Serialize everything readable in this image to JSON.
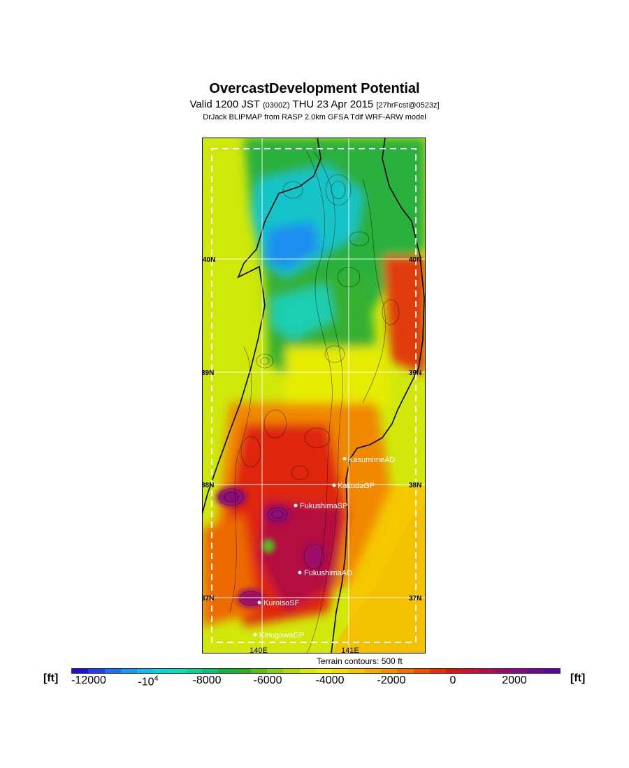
{
  "header": {
    "title": "OvercastDevelopment Potential",
    "subtitle_main": "Valid 1200 JST",
    "subtitle_utc": "(0300Z)",
    "subtitle_date": "THU 23 Apr 2015",
    "subtitle_fcst": "[27hrFcst@0523z]",
    "caption": "DrJack BLIPMAP from RASP 2.0km GFSA Tdif WRF-ARW model"
  },
  "map": {
    "lon_labels": [
      "140E",
      "141E"
    ],
    "lat_labels": [
      "40N",
      "39N",
      "38N",
      "37N"
    ],
    "stations": [
      {
        "name": "KasumimeAD"
      },
      {
        "name": "KakudaGP"
      },
      {
        "name": "FukushimaSP"
      },
      {
        "name": "FukushimaAD"
      },
      {
        "name": "KuroisoSF"
      },
      {
        "name": "KinugawaGP"
      }
    ]
  },
  "legend": {
    "terrain_note": "Terrain contours: 500 ft",
    "unit_left": "[ft]",
    "unit_right": "[ft]",
    "tick_labels": [
      "-12000",
      "-10",
      "-8000",
      "-6000",
      "-4000",
      "-2000",
      "0",
      "2000"
    ],
    "tick_exponent": "4",
    "colors": [
      "#1a10d8",
      "#1f3fe8",
      "#1f6ff0",
      "#1c98f2",
      "#14bcee",
      "#0dd6d8",
      "#10dcc0",
      "#12d09c",
      "#10c070",
      "#14b040",
      "#2aae22",
      "#58be1c",
      "#86cc18",
      "#b2da12",
      "#d8e80a",
      "#eef000",
      "#f5dc00",
      "#f7c400",
      "#f7aa00",
      "#f68f00",
      "#f27000",
      "#ec5000",
      "#e43000",
      "#d81414",
      "#c81030",
      "#b40c4c",
      "#9c0a68",
      "#860a80",
      "#6e0a90",
      "#58089c"
    ]
  }
}
